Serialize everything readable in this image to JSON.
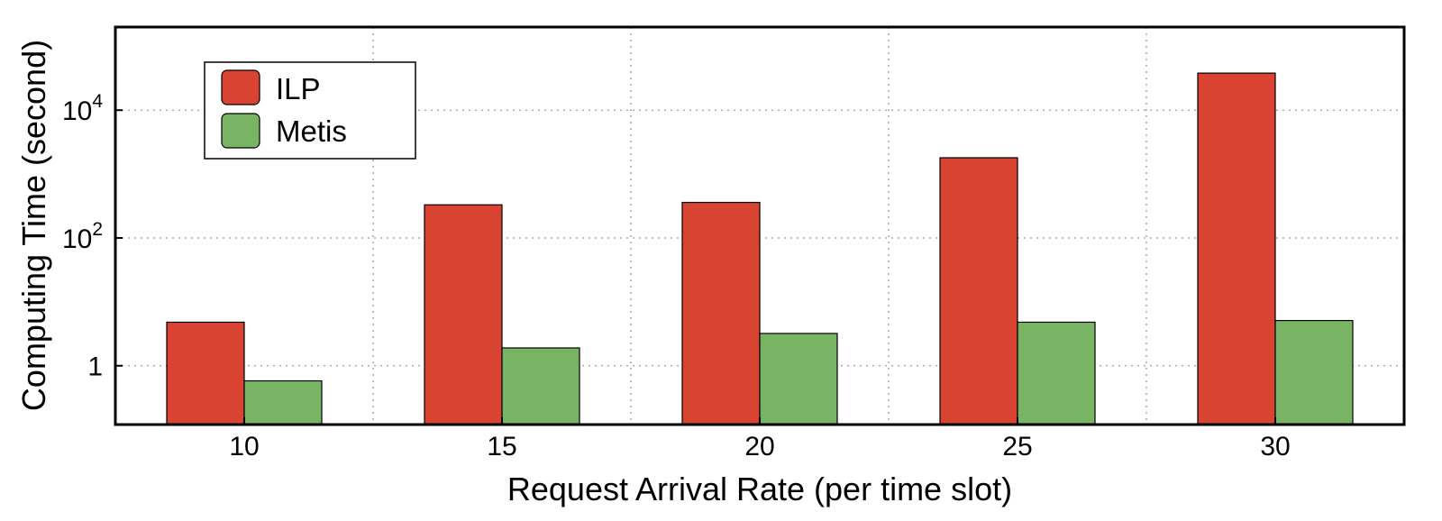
{
  "colors": {
    "ILP": "#d94432",
    "Metis": "#78b464"
  },
  "chart_data": {
    "type": "bar",
    "title": "",
    "xlabel": "Request Arrival Rate (per time slot)",
    "ylabel": "Computing Time (second)",
    "yscale": "log",
    "ylim": [
      0.12,
      200000
    ],
    "yticks": [
      {
        "value": 1,
        "label": "1"
      },
      {
        "value": 100,
        "label": "10",
        "exp": "2"
      },
      {
        "value": 10000,
        "label": "10",
        "exp": "4"
      }
    ],
    "categories": [
      "10",
      "15",
      "20",
      "25",
      "30"
    ],
    "series": [
      {
        "name": "ILP",
        "values": [
          4.8,
          330,
          360,
          1800,
          38000
        ]
      },
      {
        "name": "Metis",
        "values": [
          0.58,
          1.9,
          3.2,
          4.8,
          5.1
        ]
      }
    ],
    "grid": true,
    "legend_position": "top-left"
  }
}
